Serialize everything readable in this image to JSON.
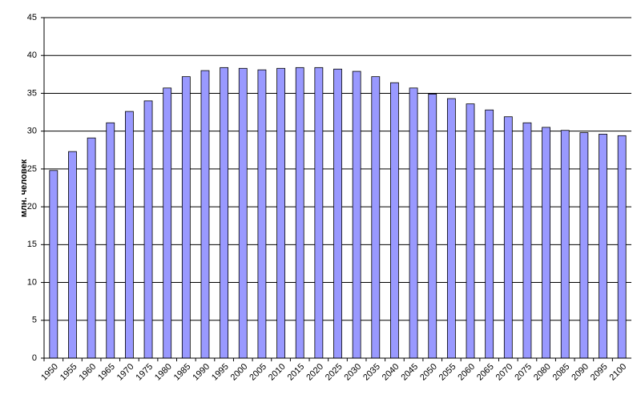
{
  "chart_data": {
    "type": "bar",
    "y_label": "млн. человек",
    "categories": [
      "1950",
      "1955",
      "1960",
      "1965",
      "1970",
      "1975",
      "1980",
      "1985",
      "1990",
      "1995",
      "2000",
      "2005",
      "2010",
      "2015",
      "2020",
      "2025",
      "2030",
      "2035",
      "2040",
      "2045",
      "2050",
      "2055",
      "2060",
      "2065",
      "2070",
      "2075",
      "2080",
      "2085",
      "2090",
      "2095",
      "2100"
    ],
    "values": [
      24.8,
      27.3,
      29.1,
      31.1,
      32.6,
      34.0,
      35.7,
      37.2,
      38.0,
      38.4,
      38.3,
      38.1,
      38.3,
      38.4,
      38.4,
      38.2,
      37.9,
      37.2,
      36.4,
      35.7,
      34.9,
      34.3,
      33.6,
      32.8,
      31.9,
      31.1,
      30.5,
      30.1,
      29.8,
      29.6,
      29.4
    ],
    "color": "#9999ff",
    "ylim": [
      0,
      45
    ],
    "yticks": [
      0,
      5,
      10,
      15,
      20,
      25,
      30,
      35,
      40,
      45
    ],
    "grid": true
  }
}
